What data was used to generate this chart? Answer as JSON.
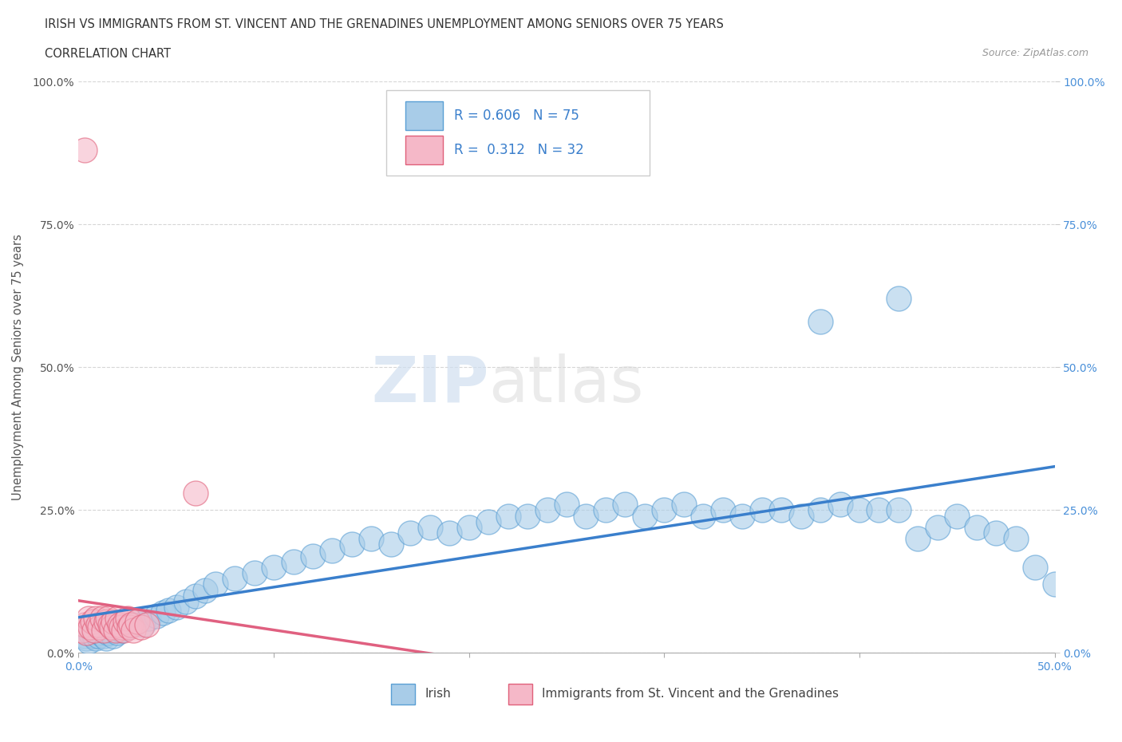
{
  "title_line1": "IRISH VS IMMIGRANTS FROM ST. VINCENT AND THE GRENADINES UNEMPLOYMENT AMONG SENIORS OVER 75 YEARS",
  "title_line2": "CORRELATION CHART",
  "source_text": "Source: ZipAtlas.com",
  "ylabel": "Unemployment Among Seniors over 75 years",
  "legend_irish_R": "0.606",
  "legend_irish_N": "75",
  "legend_svg_R": "0.312",
  "legend_svg_N": "32",
  "irish_color": "#a8cce8",
  "svg_color": "#f5b8c8",
  "irish_edge_color": "#5a9fd4",
  "svg_edge_color": "#e0607a",
  "irish_line_color": "#3a7fcc",
  "svg_line_color": "#e06080",
  "grid_color": "#cccccc",
  "xlim": [
    0.0,
    0.5
  ],
  "ylim": [
    0.0,
    1.0
  ],
  "xtick_positions": [
    0.0,
    0.1,
    0.2,
    0.3,
    0.4,
    0.5
  ],
  "ytick_positions": [
    0.0,
    0.25,
    0.5,
    0.75,
    1.0
  ],
  "xtick_labels": [
    "0.0%",
    "",
    "",
    "",
    "",
    "50.0%"
  ],
  "ytick_labels_left": [
    "0.0%",
    "25.0%",
    "50.0%",
    "75.0%",
    "100.0%"
  ],
  "ytick_labels_right": [
    "0.0%",
    "25.0%",
    "50.0%",
    "75.0%",
    "100.0%"
  ],
  "irish_scatter_x": [
    0.003,
    0.004,
    0.005,
    0.006,
    0.007,
    0.008,
    0.009,
    0.01,
    0.011,
    0.012,
    0.013,
    0.014,
    0.015,
    0.016,
    0.018,
    0.02,
    0.022,
    0.025,
    0.028,
    0.03,
    0.033,
    0.036,
    0.04,
    0.043,
    0.046,
    0.05,
    0.055,
    0.06,
    0.065,
    0.07,
    0.08,
    0.09,
    0.1,
    0.11,
    0.12,
    0.13,
    0.14,
    0.15,
    0.16,
    0.17,
    0.18,
    0.19,
    0.2,
    0.21,
    0.22,
    0.23,
    0.24,
    0.25,
    0.26,
    0.27,
    0.28,
    0.29,
    0.3,
    0.31,
    0.32,
    0.33,
    0.34,
    0.35,
    0.36,
    0.37,
    0.38,
    0.39,
    0.4,
    0.41,
    0.42,
    0.43,
    0.44,
    0.45,
    0.46,
    0.47,
    0.48,
    0.49,
    0.5,
    0.38,
    0.42
  ],
  "irish_scatter_y": [
    0.03,
    0.025,
    0.02,
    0.035,
    0.04,
    0.03,
    0.025,
    0.03,
    0.035,
    0.04,
    0.03,
    0.025,
    0.035,
    0.04,
    0.03,
    0.035,
    0.04,
    0.045,
    0.05,
    0.055,
    0.05,
    0.06,
    0.065,
    0.07,
    0.075,
    0.08,
    0.09,
    0.1,
    0.11,
    0.12,
    0.13,
    0.14,
    0.15,
    0.16,
    0.17,
    0.18,
    0.19,
    0.2,
    0.19,
    0.21,
    0.22,
    0.21,
    0.22,
    0.23,
    0.24,
    0.24,
    0.25,
    0.26,
    0.24,
    0.25,
    0.26,
    0.24,
    0.25,
    0.26,
    0.24,
    0.25,
    0.24,
    0.25,
    0.25,
    0.24,
    0.25,
    0.26,
    0.25,
    0.25,
    0.25,
    0.2,
    0.22,
    0.24,
    0.22,
    0.21,
    0.2,
    0.15,
    0.12,
    0.58,
    0.62
  ],
  "svg_scatter_x": [
    0.002,
    0.003,
    0.004,
    0.005,
    0.006,
    0.007,
    0.008,
    0.009,
    0.01,
    0.011,
    0.012,
    0.013,
    0.014,
    0.015,
    0.016,
    0.017,
    0.018,
    0.019,
    0.02,
    0.021,
    0.022,
    0.023,
    0.024,
    0.025,
    0.026,
    0.027,
    0.028,
    0.03,
    0.032,
    0.035,
    0.003,
    0.06
  ],
  "svg_scatter_y": [
    0.04,
    0.05,
    0.035,
    0.06,
    0.045,
    0.055,
    0.04,
    0.06,
    0.05,
    0.045,
    0.06,
    0.04,
    0.055,
    0.06,
    0.05,
    0.045,
    0.055,
    0.04,
    0.06,
    0.05,
    0.045,
    0.04,
    0.055,
    0.06,
    0.045,
    0.05,
    0.04,
    0.055,
    0.045,
    0.05,
    0.88,
    0.28
  ]
}
